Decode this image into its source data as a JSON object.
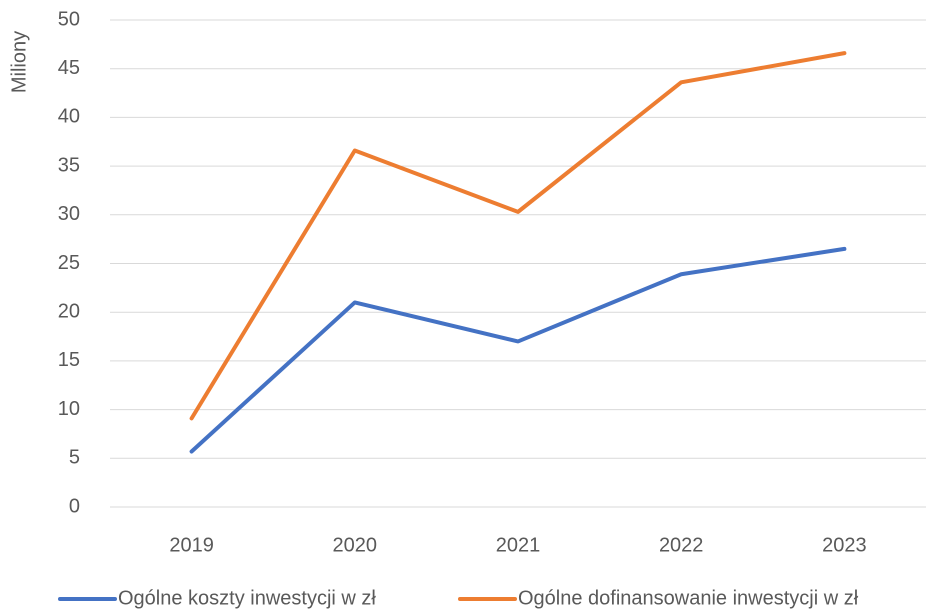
{
  "chart_data": {
    "type": "line",
    "y_label": "Miliony",
    "categories": [
      "2019",
      "2020",
      "2021",
      "2022",
      "2023"
    ],
    "series": [
      {
        "name": "Ogólne koszty inwestycji w zł",
        "color": "#4472c4",
        "values": [
          5.7,
          21,
          17,
          23.9,
          26.5
        ]
      },
      {
        "name": "Ogólne dofinansowanie inwestycji w zł",
        "color": "#ed7d31",
        "values": [
          9.1,
          36.6,
          30.3,
          43.6,
          46.6
        ]
      }
    ],
    "ylim": [
      0,
      50
    ],
    "yticks": [
      0,
      5,
      10,
      15,
      20,
      25,
      30,
      35,
      40,
      45,
      50
    ],
    "grid": true,
    "legend": "bottom"
  }
}
